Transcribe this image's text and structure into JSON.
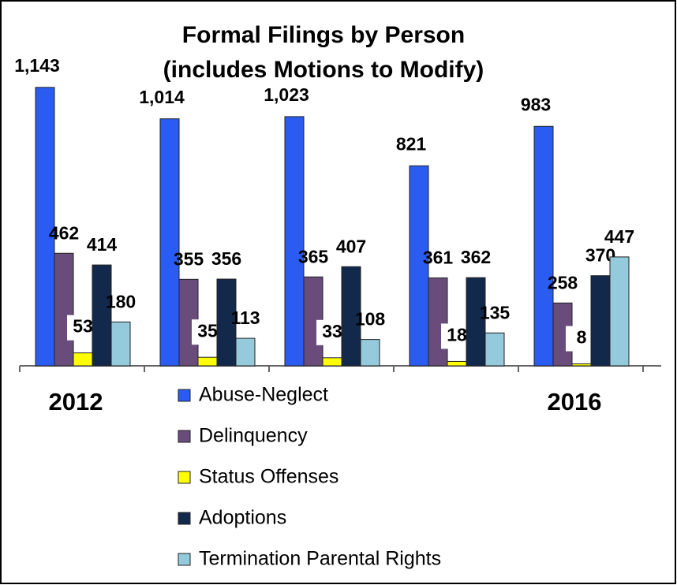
{
  "chart_data": {
    "type": "bar",
    "title": "Formal Filings by Person",
    "subtitle": "(includes Motions to Modify)",
    "categories": [
      "2012",
      null,
      null,
      null,
      "2016"
    ],
    "series": [
      {
        "name": "Abuse-Neglect",
        "color": "#2b5cf2",
        "values": [
          1143,
          1014,
          1023,
          821,
          983
        ],
        "value_labels": [
          "1,143",
          "1,014",
          "1,023",
          "821",
          "983"
        ]
      },
      {
        "name": "Delinquency",
        "color": "#6a4c7c",
        "values": [
          462,
          355,
          365,
          361,
          258
        ]
      },
      {
        "name": "Status Offenses",
        "color": "#ffff00",
        "values": [
          53,
          35,
          33,
          18,
          8
        ]
      },
      {
        "name": "Adoptions",
        "color": "#13294b",
        "values": [
          414,
          356,
          407,
          362,
          370
        ]
      },
      {
        "name": "Termination Parental Rights",
        "color": "#94cadb",
        "values": [
          180,
          113,
          108,
          135,
          447
        ]
      }
    ]
  }
}
